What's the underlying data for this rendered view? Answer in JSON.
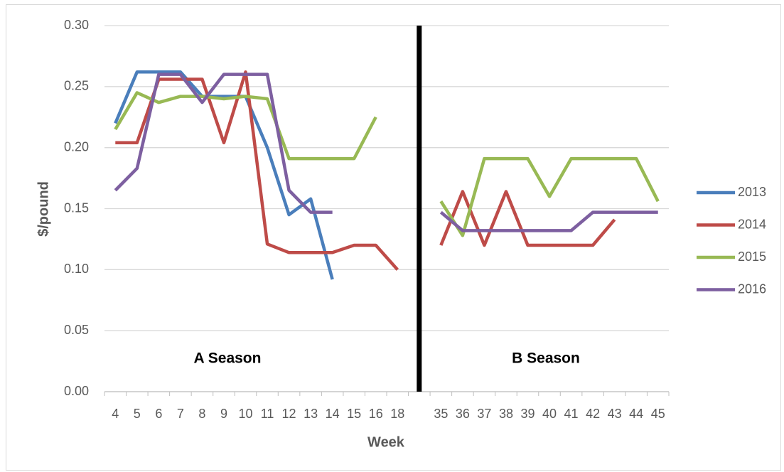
{
  "chart_data": {
    "type": "line",
    "y_label": "$/pound",
    "x_label": "Week",
    "annotations": [
      "A Season",
      "B Season"
    ],
    "categories": [
      "4",
      "5",
      "6",
      "7",
      "8",
      "9",
      "10",
      "11",
      "12",
      "13",
      "14",
      "15",
      "16",
      "18",
      null,
      "35",
      "36",
      "37",
      "38",
      "39",
      "40",
      "41",
      "42",
      "43",
      "44",
      "45"
    ],
    "series": [
      {
        "name": "2013",
        "color": "#4a7ebb",
        "values": [
          0.22,
          0.262,
          0.262,
          0.262,
          0.242,
          0.242,
          0.242,
          0.2,
          0.145,
          0.158,
          0.092,
          null,
          null,
          null,
          null,
          null,
          null,
          null,
          null,
          null,
          null,
          null,
          null,
          null,
          null,
          null
        ]
      },
      {
        "name": "2014",
        "color": "#be4b48",
        "values": [
          0.204,
          0.204,
          0.256,
          0.256,
          0.256,
          0.204,
          0.262,
          0.121,
          0.114,
          0.114,
          0.114,
          0.12,
          0.12,
          0.1,
          null,
          0.12,
          0.164,
          0.12,
          0.164,
          0.12,
          0.12,
          0.12,
          0.12,
          0.141,
          null,
          null
        ]
      },
      {
        "name": "2015",
        "color": "#98b954",
        "values": [
          0.215,
          0.245,
          0.237,
          0.242,
          0.242,
          0.24,
          0.242,
          0.24,
          0.191,
          0.191,
          0.191,
          0.191,
          0.225,
          null,
          null,
          0.156,
          0.128,
          0.191,
          0.191,
          0.191,
          0.16,
          0.191,
          0.191,
          0.191,
          0.191,
          0.156
        ]
      },
      {
        "name": "2016",
        "color": "#7d5fa0",
        "values": [
          0.165,
          0.183,
          0.26,
          0.26,
          0.237,
          0.26,
          0.26,
          0.26,
          0.165,
          0.147,
          0.147,
          null,
          null,
          null,
          null,
          0.147,
          0.132,
          0.132,
          0.132,
          0.132,
          0.132,
          0.132,
          0.147,
          0.147,
          0.147,
          0.147
        ]
      }
    ],
    "ylim": [
      0,
      0.3
    ],
    "yticks": [
      {
        "value": 0,
        "label": "0.00"
      },
      {
        "value": 0.05,
        "label": "0.05"
      },
      {
        "value": 0.1,
        "label": "0.10"
      },
      {
        "value": 0.15,
        "label": "0.15"
      },
      {
        "value": 0.2,
        "label": "0.20"
      },
      {
        "value": 0.25,
        "label": "0.25"
      },
      {
        "value": 0.3,
        "label": "0.30"
      }
    ],
    "grid": true,
    "legend": "right"
  }
}
